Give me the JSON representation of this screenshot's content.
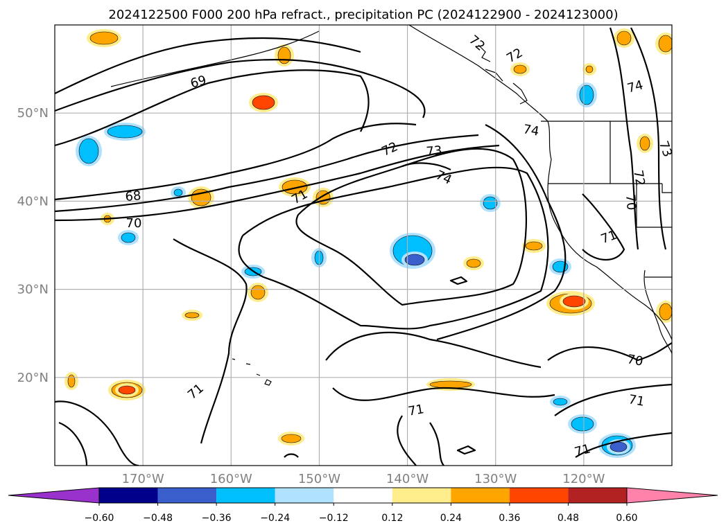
{
  "title": "2024122500 F000 200 hPa refract., precipitation PC (2024122900 - 2024123000)",
  "chart_data": {
    "type": "map-contour",
    "title": "2024122500 F000 200 hPa refract., precipitation PC (2024122900 - 2024123000)",
    "lon_range": [
      -180,
      -110
    ],
    "lat_range": [
      10,
      60
    ],
    "lon_ticks": [
      "170°W",
      "160°W",
      "150°W",
      "140°W",
      "130°W",
      "120°W"
    ],
    "lon_tick_values": [
      -170,
      -160,
      -150,
      -140,
      -130,
      -120
    ],
    "lat_ticks": [
      "50°N",
      "40°N",
      "30°N",
      "20°N"
    ],
    "lat_tick_values": [
      50,
      40,
      30,
      20
    ],
    "grid": true,
    "contour_labels": [
      "69",
      "68",
      "70",
      "71",
      "72",
      "73",
      "74",
      "72",
      "72",
      "74",
      "74",
      "73",
      "72",
      "70",
      "71",
      "71",
      "71",
      "70",
      "71",
      "71"
    ],
    "colorbar": {
      "boundaries": [
        -0.6,
        -0.48,
        -0.36,
        -0.24,
        -0.12,
        0.12,
        0.24,
        0.36,
        0.48,
        0.6
      ],
      "tick_labels": [
        "−0.60",
        "−0.48",
        "−0.36",
        "−0.24",
        "−0.12",
        "0.12",
        "0.24",
        "0.36",
        "0.48",
        "0.60"
      ],
      "colors": [
        "#9932cc",
        "#00008b",
        "#3a5fcd",
        "#00bfff",
        "#b0e2ff",
        "#ffffff",
        "#ffec8b",
        "#ffa500",
        "#ff4500",
        "#b22222",
        "#ff82ab"
      ],
      "extend": "both"
    }
  }
}
